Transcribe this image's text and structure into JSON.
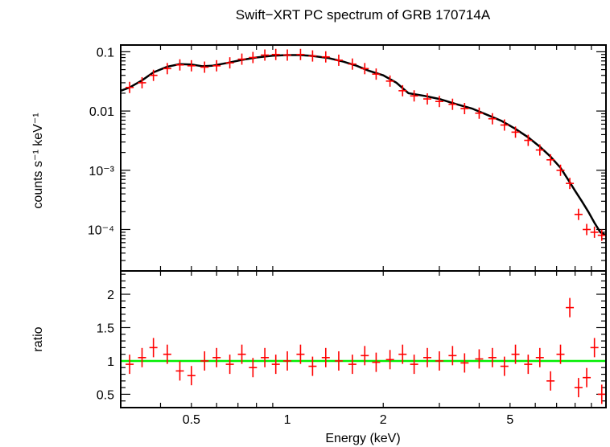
{
  "chart_data": [
    {
      "type": "scatter",
      "panel": "spectrum",
      "title": "Swift−XRT PC spectrum of GRB 170714A",
      "ylabel": "counts s⁻¹ keV⁻¹",
      "xlabel": "",
      "x_scale": "log",
      "y_scale": "log",
      "xlim": [
        0.3,
        10
      ],
      "ylim": [
        2e-05,
        0.13
      ],
      "y_ticks": [
        {
          "value": 0.1,
          "label": "0.1"
        },
        {
          "value": 0.01,
          "label": "0.01"
        },
        {
          "value": 0.001,
          "label": "10⁻³"
        },
        {
          "value": 0.0001,
          "label": "10⁻⁴"
        }
      ],
      "series": [
        {
          "kind": "data",
          "color": "#ff0000",
          "x": [
            0.32,
            0.35,
            0.38,
            0.42,
            0.46,
            0.5,
            0.55,
            0.6,
            0.66,
            0.72,
            0.78,
            0.85,
            0.92,
            1.0,
            1.1,
            1.2,
            1.32,
            1.45,
            1.6,
            1.75,
            1.9,
            2.1,
            2.3,
            2.5,
            2.75,
            3.0,
            3.3,
            3.6,
            4.0,
            4.4,
            4.8,
            5.2,
            5.7,
            6.2,
            6.7,
            7.2,
            7.7,
            8.2,
            8.7,
            9.2,
            9.7
          ],
          "y": [
            0.025,
            0.03,
            0.04,
            0.052,
            0.06,
            0.058,
            0.055,
            0.058,
            0.065,
            0.075,
            0.08,
            0.088,
            0.09,
            0.088,
            0.09,
            0.085,
            0.082,
            0.072,
            0.062,
            0.052,
            0.042,
            0.032,
            0.022,
            0.018,
            0.016,
            0.0145,
            0.013,
            0.011,
            0.0092,
            0.0074,
            0.0058,
            0.0044,
            0.0032,
            0.0022,
            0.0015,
            0.001,
            0.0006,
            0.00018,
            0.0001,
            9e-05,
            8e-05
          ]
        },
        {
          "kind": "model",
          "color": "#000000",
          "x": [
            0.3,
            0.32,
            0.35,
            0.38,
            0.42,
            0.46,
            0.5,
            0.54,
            0.58,
            0.65,
            0.72,
            0.8,
            0.9,
            1.0,
            1.1,
            1.2,
            1.35,
            1.5,
            1.65,
            1.8,
            2.0,
            2.2,
            2.4,
            2.7,
            3.0,
            3.4,
            3.8,
            4.2,
            4.7,
            5.2,
            5.7,
            6.2,
            6.7,
            7.2,
            7.6,
            8.0,
            8.4,
            8.8,
            9.2,
            9.6,
            10.0
          ],
          "y": [
            0.022,
            0.025,
            0.033,
            0.045,
            0.056,
            0.062,
            0.061,
            0.057,
            0.058,
            0.065,
            0.073,
            0.08,
            0.086,
            0.088,
            0.088,
            0.085,
            0.078,
            0.068,
            0.058,
            0.048,
            0.04,
            0.03,
            0.02,
            0.018,
            0.016,
            0.013,
            0.011,
            0.0088,
            0.0068,
            0.005,
            0.0036,
            0.0025,
            0.0017,
            0.0011,
            0.0007,
            0.00045,
            0.0003,
            0.0002,
            0.00013,
            9e-05,
            8e-05
          ]
        }
      ]
    },
    {
      "type": "scatter",
      "panel": "ratio",
      "xlabel": "Energy (keV)",
      "ylabel": "ratio",
      "x_scale": "log",
      "y_scale": "linear",
      "xlim": [
        0.3,
        10
      ],
      "ylim": [
        0.3,
        2.35
      ],
      "x_ticks": [
        {
          "value": 0.5,
          "label": "0.5"
        },
        {
          "value": 1,
          "label": "1"
        },
        {
          "value": 2,
          "label": "2"
        },
        {
          "value": 5,
          "label": "5"
        }
      ],
      "y_ticks": [
        {
          "value": 0.5,
          "label": "0.5"
        },
        {
          "value": 1,
          "label": "1"
        },
        {
          "value": 1.5,
          "label": "1.5"
        },
        {
          "value": 2,
          "label": "2"
        }
      ],
      "reference_line": {
        "y": 1,
        "color": "#00ee00"
      },
      "series": [
        {
          "kind": "data",
          "color": "#ff0000",
          "x": [
            0.32,
            0.35,
            0.38,
            0.42,
            0.46,
            0.5,
            0.55,
            0.6,
            0.66,
            0.72,
            0.78,
            0.85,
            0.92,
            1.0,
            1.1,
            1.2,
            1.32,
            1.45,
            1.6,
            1.75,
            1.9,
            2.1,
            2.3,
            2.5,
            2.75,
            3.0,
            3.3,
            3.6,
            4.0,
            4.4,
            4.8,
            5.2,
            5.7,
            6.2,
            6.7,
            7.2,
            7.7,
            8.2,
            8.7,
            9.2,
            9.7
          ],
          "y": [
            0.95,
            1.05,
            1.2,
            1.1,
            0.85,
            0.78,
            1.0,
            1.05,
            0.95,
            1.1,
            0.9,
            1.05,
            0.95,
            1.0,
            1.1,
            0.92,
            1.05,
            1.0,
            0.95,
            1.08,
            0.98,
            1.02,
            1.1,
            0.95,
            1.05,
            1.0,
            1.08,
            0.97,
            1.03,
            1.05,
            0.92,
            1.1,
            0.95,
            1.05,
            0.7,
            1.1,
            1.8,
            0.6,
            0.75,
            1.2,
            0.5
          ]
        }
      ]
    }
  ]
}
